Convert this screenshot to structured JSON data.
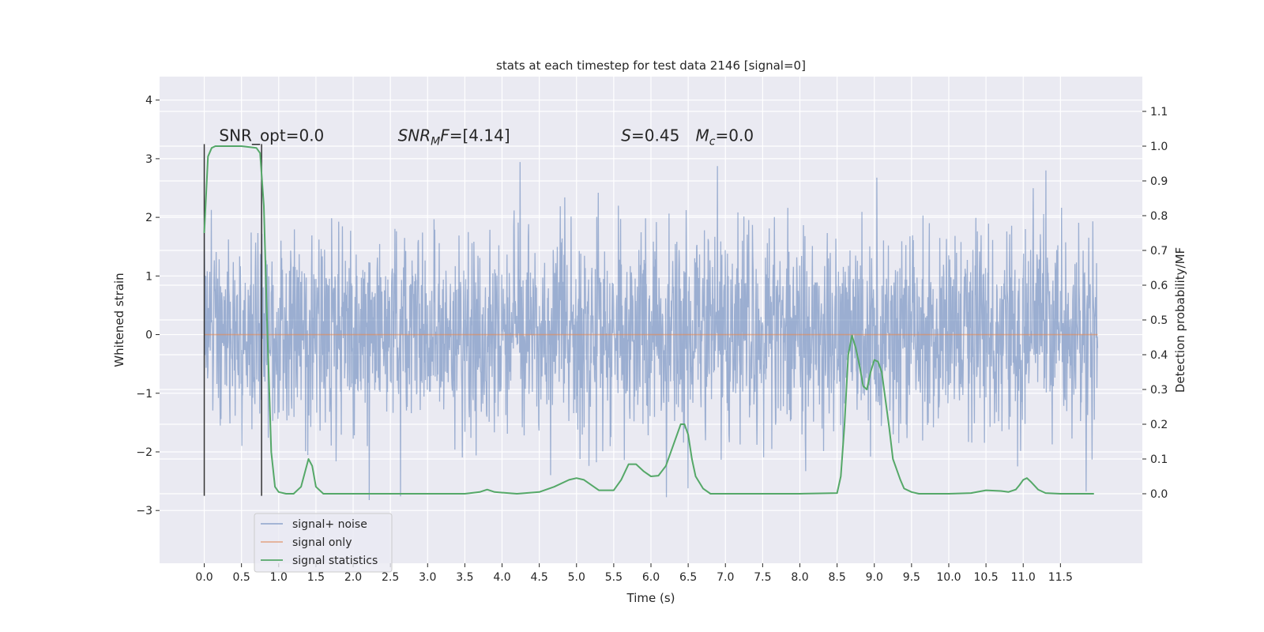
{
  "chart_data": {
    "type": "line",
    "title": "stats at each timestep for test data 2146 [signal=0]",
    "xlabel": "Time (s)",
    "ylabel": "Whitened strain",
    "ylabel_right": "Detection probability/MF",
    "xlim": [
      -0.6,
      12.6
    ],
    "ylim": [
      -3.9,
      4.4
    ],
    "ylim_right": [
      -0.2,
      1.2
    ],
    "x_ticks": [
      0.0,
      0.5,
      1.0,
      1.5,
      2.0,
      2.5,
      3.0,
      3.5,
      4.0,
      4.5,
      5.0,
      5.5,
      6.0,
      6.5,
      7.0,
      7.5,
      8.0,
      8.5,
      9.0,
      9.5,
      10.0,
      10.5,
      11.0,
      11.5
    ],
    "x_tick_labels": [
      "0.0",
      "0.5",
      "1.0",
      "1.5",
      "2.0",
      "2.5",
      "3.0",
      "3.5",
      "4.0",
      "4.5",
      "5.0",
      "5.5",
      "6.0",
      "6.5",
      "7.0",
      "7.5",
      "8.0",
      "8.5",
      "9.0",
      "9.5",
      "10.0",
      "10.5",
      "11.0",
      "11.5"
    ],
    "y_ticks": [
      -3,
      -2,
      -1,
      0,
      1,
      2,
      3,
      4
    ],
    "y_tick_labels": [
      "−3",
      "−2",
      "−1",
      "0",
      "1",
      "2",
      "3",
      "4"
    ],
    "y_right_ticks": [
      0.0,
      0.1,
      0.2,
      0.3,
      0.4,
      0.5,
      0.6,
      0.7,
      0.8,
      0.9,
      1.0,
      1.1
    ],
    "y_right_tick_labels": [
      "0.0",
      "0.1",
      "0.2",
      "0.3",
      "0.4",
      "0.5",
      "0.6",
      "0.7",
      "0.8",
      "0.9",
      "1.0",
      "1.1"
    ],
    "grid": true,
    "legend_position": "lower-left",
    "noise": {
      "x_range": [
        0.0,
        12.0
      ],
      "samples": 2400,
      "seed": 2146,
      "std": 0.85,
      "clip": [
        -3.6,
        4.1
      ]
    },
    "series": [
      {
        "name": "signal+ noise",
        "axis": "left",
        "color": "#4c72b0",
        "opacity": 0.5,
        "kind": "noise"
      },
      {
        "name": "signal only",
        "axis": "left",
        "color": "#dd8452",
        "opacity": 0.6,
        "x": [
          0.0,
          12.0
        ],
        "y": [
          0.0,
          0.0
        ]
      },
      {
        "name": "signal statistics",
        "axis": "right",
        "color": "#55a868",
        "x": [
          0.0,
          0.05,
          0.1,
          0.15,
          0.2,
          0.3,
          0.5,
          0.7,
          0.75,
          0.8,
          0.85,
          0.9,
          0.95,
          1.0,
          1.1,
          1.2,
          1.3,
          1.35,
          1.4,
          1.45,
          1.5,
          1.6,
          1.8,
          2.5,
          3.0,
          3.5,
          3.7,
          3.8,
          3.9,
          4.2,
          4.5,
          4.7,
          4.9,
          5.0,
          5.1,
          5.3,
          5.5,
          5.6,
          5.7,
          5.8,
          5.9,
          6.0,
          6.1,
          6.2,
          6.3,
          6.4,
          6.45,
          6.5,
          6.55,
          6.6,
          6.7,
          6.8,
          7.0,
          7.5,
          8.0,
          8.5,
          8.55,
          8.6,
          8.65,
          8.7,
          8.75,
          8.8,
          8.85,
          8.9,
          8.95,
          9.0,
          9.05,
          9.1,
          9.15,
          9.2,
          9.25,
          9.3,
          9.35,
          9.4,
          9.5,
          9.6,
          9.8,
          10.0,
          10.3,
          10.5,
          10.7,
          10.8,
          10.9,
          10.95,
          11.0,
          11.05,
          11.1,
          11.2,
          11.3,
          11.5,
          11.8,
          11.95
        ],
        "y": [
          0.75,
          0.97,
          0.995,
          1.0,
          1.0,
          1.0,
          1.0,
          0.995,
          0.98,
          0.83,
          0.45,
          0.12,
          0.02,
          0.005,
          0.0,
          0.0,
          0.02,
          0.06,
          0.1,
          0.08,
          0.02,
          0.0,
          0.0,
          0.0,
          0.0,
          0.0,
          0.005,
          0.012,
          0.005,
          0.0,
          0.005,
          0.02,
          0.04,
          0.045,
          0.04,
          0.01,
          0.01,
          0.04,
          0.085,
          0.085,
          0.065,
          0.05,
          0.052,
          0.08,
          0.14,
          0.2,
          0.2,
          0.17,
          0.1,
          0.05,
          0.015,
          0.0,
          0.0,
          0.0,
          0.0,
          0.002,
          0.05,
          0.2,
          0.4,
          0.455,
          0.42,
          0.37,
          0.31,
          0.3,
          0.35,
          0.385,
          0.38,
          0.35,
          0.27,
          0.19,
          0.1,
          0.07,
          0.04,
          0.015,
          0.005,
          0.0,
          0.0,
          0.0,
          0.002,
          0.01,
          0.008,
          0.005,
          0.012,
          0.025,
          0.04,
          0.045,
          0.035,
          0.012,
          0.002,
          0.0,
          0.0,
          0.0
        ]
      }
    ],
    "vlines": [
      {
        "x": 0.0,
        "ymin": -2.75,
        "ymax": 3.25,
        "color": "#333333"
      },
      {
        "x": 0.77,
        "ymin": -2.75,
        "ymax": 3.25,
        "color": "#333333"
      }
    ],
    "annotations": [
      {
        "id": "snr-opt",
        "x": 0.2,
        "y": 3.3,
        "text": "SNR_opt=0.0"
      },
      {
        "id": "snr-mf",
        "x": 2.6,
        "y": 3.3,
        "prefix": "",
        "sym": "SNR",
        "sub": "M",
        "symtail": "F",
        "rest": "=[4.14]"
      },
      {
        "id": "s-stat",
        "x": 5.6,
        "y": 3.3,
        "sym": "S",
        "rest": "=0.45"
      },
      {
        "id": "mc-stat",
        "x": 6.6,
        "y": 3.3,
        "sym": "M",
        "sub": "c",
        "rest": "=0.0"
      }
    ]
  }
}
